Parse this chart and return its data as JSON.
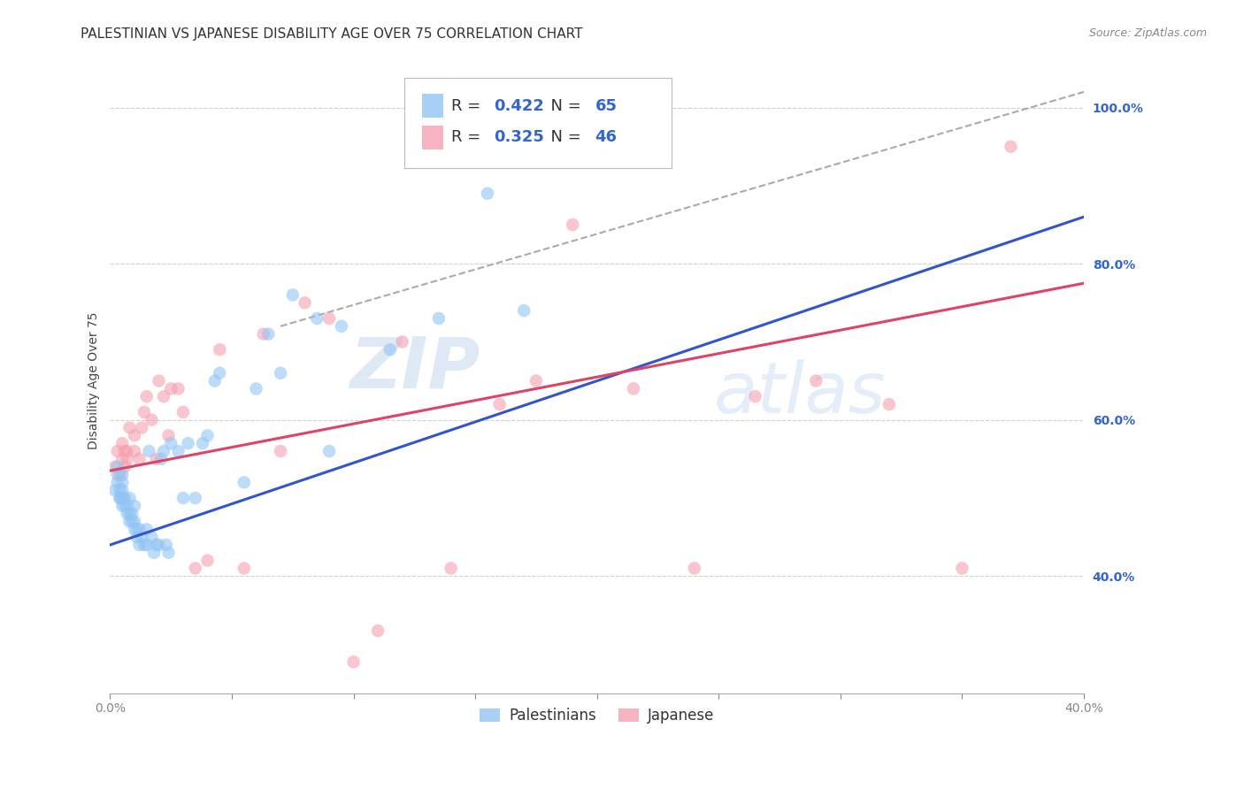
{
  "title": "PALESTINIAN VS JAPANESE DISABILITY AGE OVER 75 CORRELATION CHART",
  "source": "Source: ZipAtlas.com",
  "ylabel": "Disability Age Over 75",
  "xlim": [
    0.0,
    0.4
  ],
  "ylim": [
    0.25,
    1.05
  ],
  "yticks": [
    0.4,
    0.6,
    0.8,
    1.0
  ],
  "ytick_labels": [
    "40.0%",
    "60.0%",
    "80.0%",
    "100.0%"
  ],
  "xticks": [
    0.0,
    0.05,
    0.1,
    0.15,
    0.2,
    0.25,
    0.3,
    0.35,
    0.4
  ],
  "xtick_labels": [
    "0.0%",
    "",
    "",
    "",
    "",
    "",
    "",
    "",
    "40.0%"
  ],
  "background_color": "#ffffff",
  "grid_color": "#cccccc",
  "blue_color": "#92c5f5",
  "pink_color": "#f5a0b0",
  "blue_line_color": "#3355cc",
  "pink_line_color": "#dd4466",
  "dashed_line_color": "#aaaaaa",
  "legend_blue_R": "0.422",
  "legend_blue_N": "65",
  "legend_pink_R": "0.325",
  "legend_pink_N": "46",
  "blue_scatter_x": [
    0.002,
    0.003,
    0.003,
    0.003,
    0.004,
    0.004,
    0.004,
    0.005,
    0.005,
    0.005,
    0.005,
    0.005,
    0.005,
    0.006,
    0.006,
    0.007,
    0.007,
    0.008,
    0.008,
    0.008,
    0.009,
    0.009,
    0.01,
    0.01,
    0.01,
    0.011,
    0.011,
    0.012,
    0.012,
    0.013,
    0.014,
    0.015,
    0.015,
    0.016,
    0.017,
    0.018,
    0.019,
    0.02,
    0.021,
    0.022,
    0.023,
    0.024,
    0.025,
    0.028,
    0.03,
    0.032,
    0.035,
    0.038,
    0.04,
    0.043,
    0.045,
    0.055,
    0.06,
    0.065,
    0.07,
    0.075,
    0.085,
    0.09,
    0.095,
    0.115,
    0.125,
    0.135,
    0.155,
    0.17,
    0.22
  ],
  "blue_scatter_y": [
    0.51,
    0.52,
    0.53,
    0.54,
    0.5,
    0.5,
    0.51,
    0.49,
    0.5,
    0.5,
    0.51,
    0.52,
    0.53,
    0.49,
    0.5,
    0.48,
    0.49,
    0.47,
    0.48,
    0.5,
    0.47,
    0.48,
    0.46,
    0.47,
    0.49,
    0.45,
    0.46,
    0.44,
    0.46,
    0.45,
    0.44,
    0.44,
    0.46,
    0.56,
    0.45,
    0.43,
    0.44,
    0.44,
    0.55,
    0.56,
    0.44,
    0.43,
    0.57,
    0.56,
    0.5,
    0.57,
    0.5,
    0.57,
    0.58,
    0.65,
    0.66,
    0.52,
    0.64,
    0.71,
    0.66,
    0.76,
    0.73,
    0.56,
    0.72,
    0.69,
    0.93,
    0.73,
    0.89,
    0.74,
    0.94
  ],
  "pink_scatter_x": [
    0.002,
    0.003,
    0.004,
    0.005,
    0.005,
    0.006,
    0.006,
    0.007,
    0.007,
    0.008,
    0.01,
    0.01,
    0.012,
    0.013,
    0.014,
    0.015,
    0.017,
    0.019,
    0.02,
    0.022,
    0.024,
    0.025,
    0.028,
    0.03,
    0.035,
    0.04,
    0.045,
    0.055,
    0.063,
    0.07,
    0.08,
    0.09,
    0.1,
    0.11,
    0.12,
    0.14,
    0.16,
    0.175,
    0.19,
    0.215,
    0.24,
    0.265,
    0.29,
    0.32,
    0.35,
    0.37
  ],
  "pink_scatter_y": [
    0.54,
    0.56,
    0.53,
    0.55,
    0.57,
    0.54,
    0.56,
    0.55,
    0.56,
    0.59,
    0.56,
    0.58,
    0.55,
    0.59,
    0.61,
    0.63,
    0.6,
    0.55,
    0.65,
    0.63,
    0.58,
    0.64,
    0.64,
    0.61,
    0.41,
    0.42,
    0.69,
    0.41,
    0.71,
    0.56,
    0.75,
    0.73,
    0.29,
    0.33,
    0.7,
    0.41,
    0.62,
    0.65,
    0.85,
    0.64,
    0.41,
    0.63,
    0.65,
    0.62,
    0.41,
    0.95
  ],
  "blue_trend": [
    0.0,
    0.44,
    0.4,
    0.86
  ],
  "pink_trend": [
    0.0,
    0.535,
    0.4,
    0.775
  ],
  "dashed_trend": [
    0.07,
    0.72,
    0.4,
    1.02
  ],
  "watermark_zip": "ZIP",
  "watermark_atlas": "atlas",
  "title_fontsize": 11,
  "source_fontsize": 9,
  "ylabel_fontsize": 10,
  "tick_fontsize": 10,
  "legend_fontsize": 13
}
